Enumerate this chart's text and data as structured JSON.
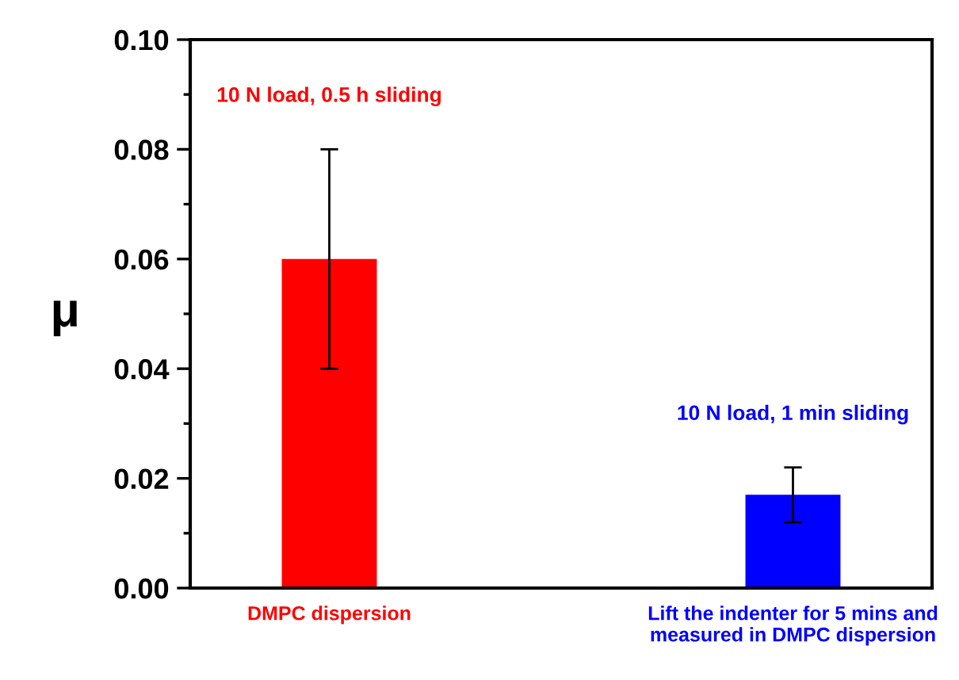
{
  "chart_data": {
    "type": "bar",
    "ylabel": "μ",
    "categories": [
      "DMPC dispersion",
      "Lift the indenter for 5 mins and\nmeasured in DMPC dispersion"
    ],
    "values": [
      0.06,
      0.017
    ],
    "colors": [
      "#ff0000",
      "#0000ff"
    ],
    "errors": [
      [
        0.04,
        0.08
      ],
      [
        0.012,
        0.022
      ]
    ],
    "ylim": [
      0,
      0.1
    ],
    "yticks": [
      {
        "value": 0,
        "label": "0.00"
      },
      {
        "value": 0.02,
        "label": "0.02"
      },
      {
        "value": 0.04,
        "label": "0.04"
      },
      {
        "value": 0.06,
        "label": "0.06"
      },
      {
        "value": 0.08,
        "label": "0.08"
      },
      {
        "value": 0.1,
        "label": "0.10"
      }
    ],
    "annotations": [
      "10 N load, 0.5 h sliding",
      "10 N load, 1 min sliding"
    ],
    "grid": false,
    "legend": false
  }
}
